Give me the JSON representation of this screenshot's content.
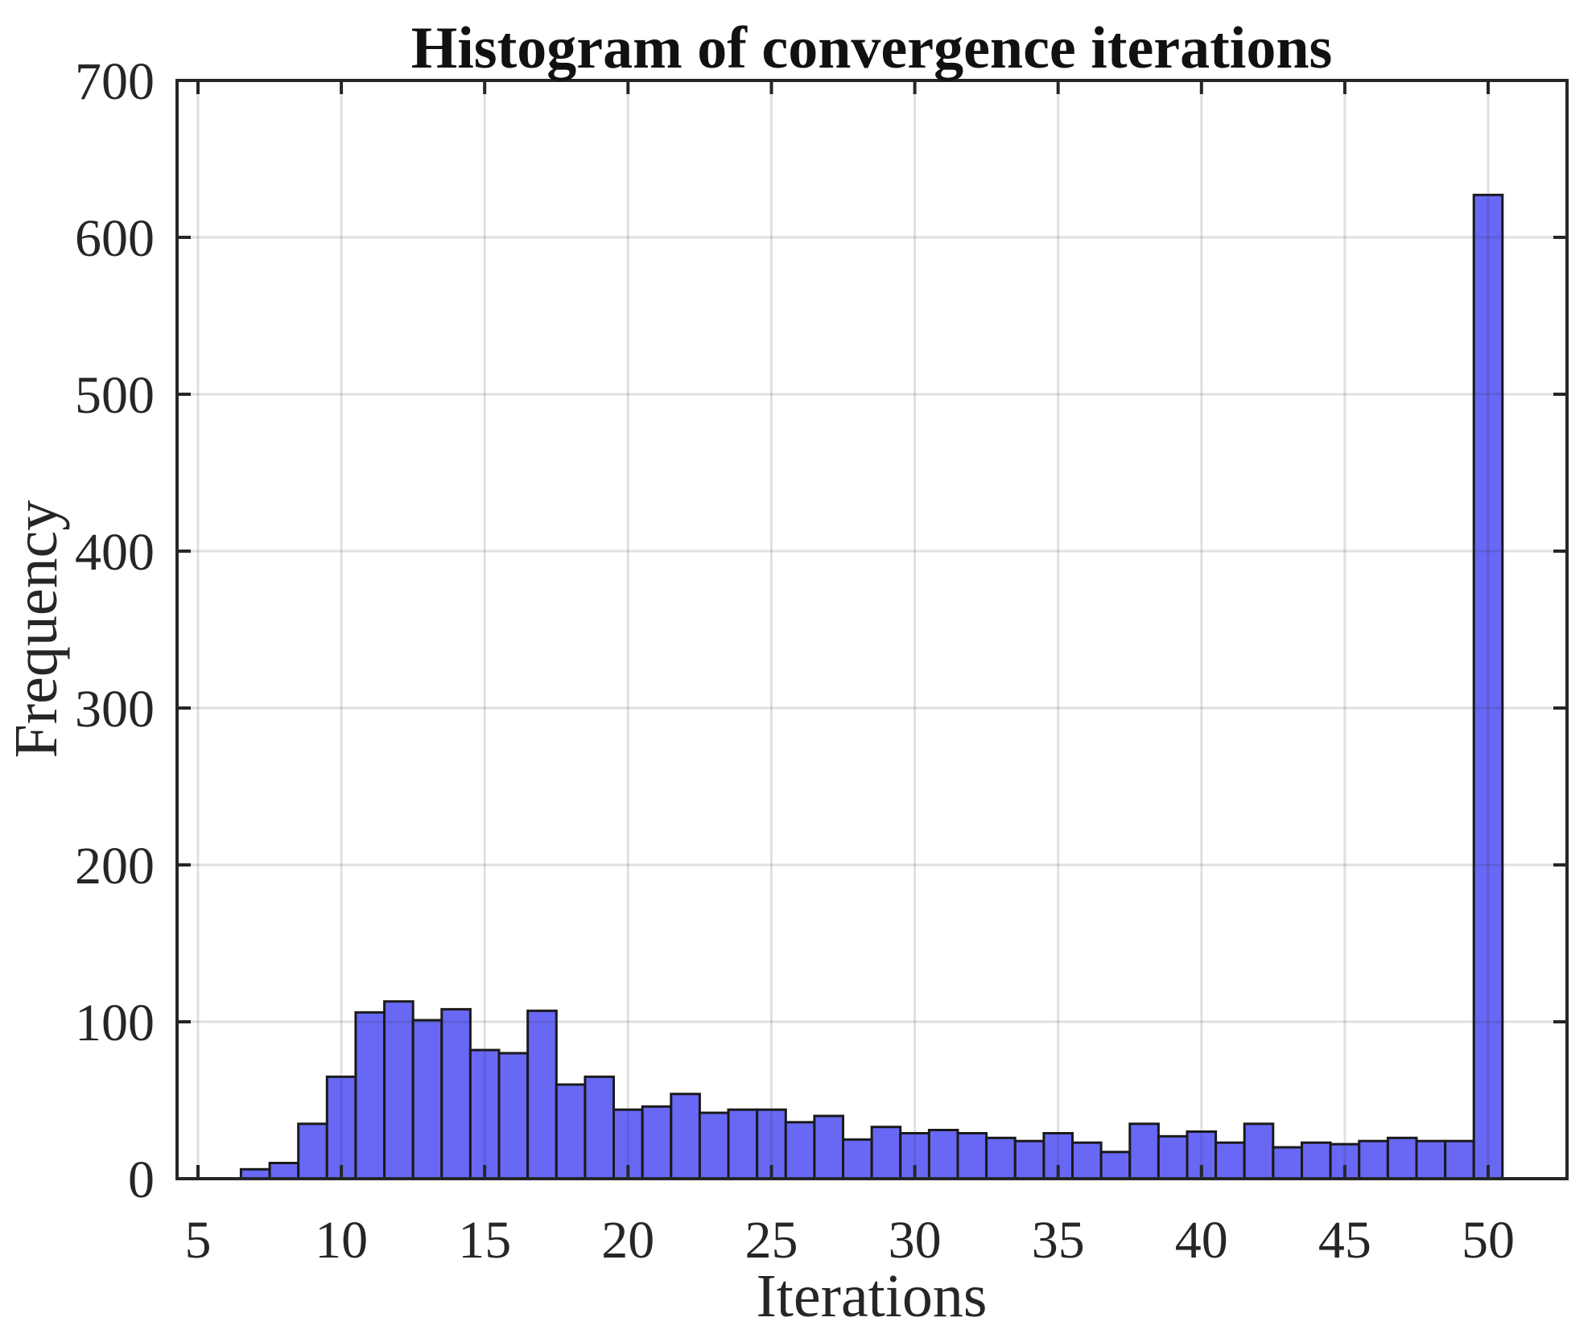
{
  "figure": {
    "title": "Histogram of convergence iterations",
    "xlabel": "Iterations",
    "ylabel": "Frequency"
  },
  "chart_data": {
    "type": "bar",
    "subtype": "histogram",
    "title": "Histogram of convergence iterations",
    "xlabel": "Iterations",
    "ylabel": "Frequency",
    "bin_width": 1,
    "bin_centers": [
      7,
      8,
      9,
      10,
      11,
      12,
      13,
      14,
      15,
      16,
      17,
      18,
      19,
      20,
      21,
      22,
      23,
      24,
      25,
      26,
      27,
      28,
      29,
      30,
      31,
      32,
      33,
      34,
      35,
      36,
      37,
      38,
      39,
      40,
      41,
      42,
      43,
      44,
      45,
      46,
      47,
      48,
      49,
      50
    ],
    "frequencies": [
      6,
      10,
      35,
      65,
      106,
      113,
      101,
      108,
      82,
      80,
      107,
      60,
      65,
      44,
      46,
      54,
      42,
      44,
      44,
      36,
      40,
      25,
      33,
      29,
      31,
      29,
      26,
      24,
      29,
      23,
      17,
      35,
      27,
      30,
      23,
      35,
      20,
      23,
      22,
      24,
      26,
      24,
      24,
      627
    ],
    "xlim": [
      4.27,
      52.75
    ],
    "ylim": [
      0,
      700
    ],
    "xticks": [
      5,
      10,
      15,
      20,
      25,
      30,
      35,
      40,
      45,
      50
    ],
    "yticks": [
      0,
      100,
      200,
      300,
      400,
      500,
      600,
      700
    ],
    "grid": true,
    "legend_position": "none",
    "colors": {
      "bar_fill": "#6868F5",
      "bar_edge": "#1A1A1A",
      "axis": "#262626",
      "grid": "#262626",
      "grid_alpha": 0.14,
      "background": "#FFFFFF",
      "text": "#262626"
    }
  }
}
